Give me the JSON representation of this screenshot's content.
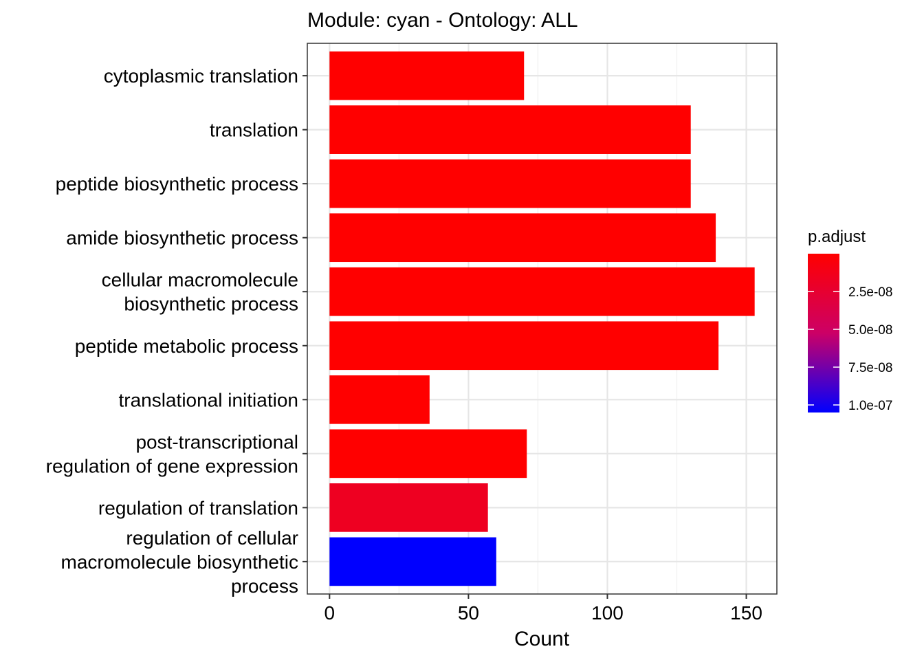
{
  "chart_data": {
    "type": "bar",
    "orientation": "horizontal",
    "title": "Module: cyan - Ontology: ALL",
    "xlabel": "Count",
    "ylabel": "",
    "xlim": [
      -8,
      161
    ],
    "xticks": [
      0,
      50,
      100,
      150
    ],
    "grid": true,
    "categories": [
      [
        "cytoplasmic translation"
      ],
      [
        "translation"
      ],
      [
        "peptide biosynthetic process"
      ],
      [
        "amide biosynthetic process"
      ],
      [
        "cellular macromolecule",
        "biosynthetic process"
      ],
      [
        "peptide metabolic process"
      ],
      [
        "translational initiation"
      ],
      [
        "post-transcriptional",
        "regulation of gene expression"
      ],
      [
        "regulation of translation"
      ],
      [
        "regulation of cellular",
        "macromolecule biosynthetic",
        "process"
      ]
    ],
    "values": [
      70,
      130,
      130,
      139,
      153,
      140,
      36,
      71,
      57,
      60
    ],
    "p_adjust": [
      1e-10,
      1e-10,
      1e-10,
      1e-10,
      1e-10,
      1e-10,
      1e-10,
      1e-10,
      1.7e-08,
      1.05e-07
    ],
    "legend": {
      "title": "p.adjust",
      "placement": "right",
      "ticks": [
        {
          "value": 2.5e-08,
          "label": "2.5e-08"
        },
        {
          "value": 5e-08,
          "label": "5.0e-08"
        },
        {
          "value": 7.5e-08,
          "label": "7.5e-08"
        },
        {
          "value": 1e-07,
          "label": "1.0e-07"
        }
      ],
      "range": [
        0,
        1.05e-07
      ],
      "color_low": "#FF0000",
      "color_high": "#0000FF"
    }
  }
}
